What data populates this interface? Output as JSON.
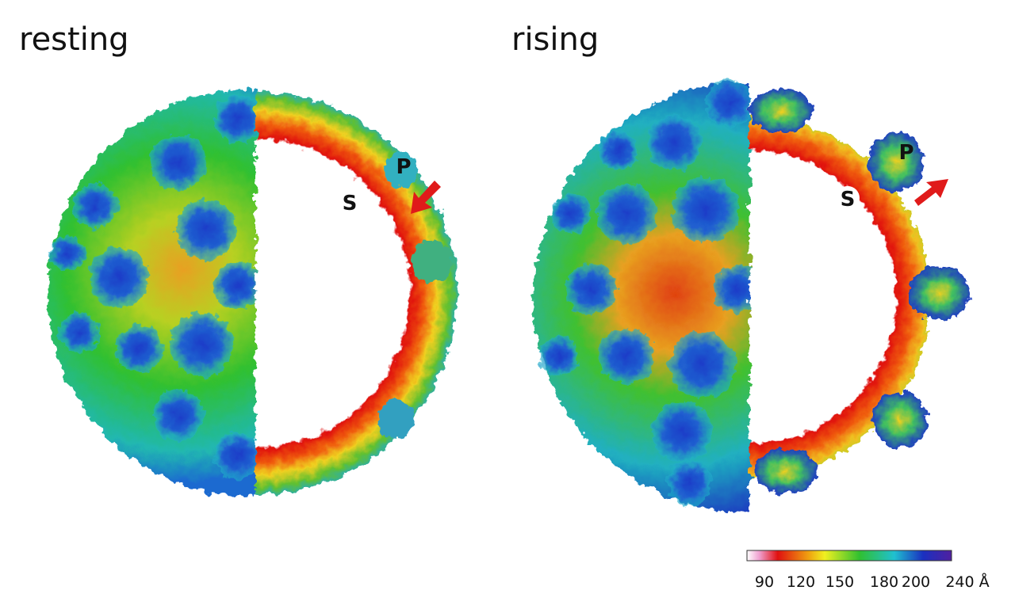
{
  "panels": [
    {
      "label": "resting",
      "markers": [
        "P",
        "S"
      ]
    },
    {
      "label": "rising",
      "markers": [
        "P",
        "S"
      ]
    }
  ],
  "colorbar": {
    "ticks": [
      "90",
      "120",
      "150",
      "180",
      "200",
      "240 Å"
    ]
  }
}
